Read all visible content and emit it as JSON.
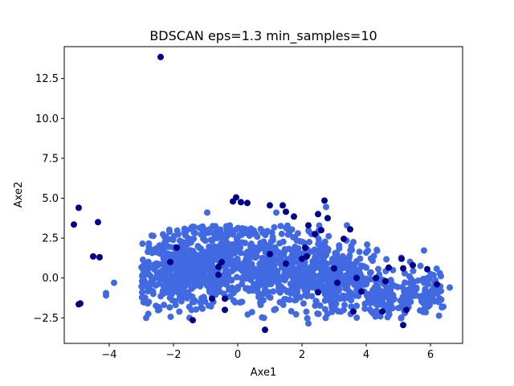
{
  "chart_data": {
    "type": "scatter",
    "title": "BDSCAN eps=1.3 min_samples=10",
    "xlabel": "Axe1",
    "ylabel": "Axe2",
    "xlim": [
      -5.4,
      7.0
    ],
    "ylim": [
      -4.1,
      14.5
    ],
    "xticks": [
      -4,
      -2,
      0,
      2,
      4,
      6
    ],
    "xtick_labels": [
      "−4",
      "−2",
      "0",
      "2",
      "4",
      "6"
    ],
    "yticks": [
      -2.5,
      0.0,
      2.5,
      5.0,
      7.5,
      10.0,
      12.5
    ],
    "ytick_labels": [
      "−2.5",
      "0.0",
      "2.5",
      "5.0",
      "7.5",
      "10.0",
      "12.5"
    ],
    "grid": false,
    "colors": {
      "cluster": "#4169e1",
      "noise": "#00008b"
    },
    "series": [
      {
        "role": "noise",
        "color": "#00008b",
        "points": [
          [
            -2.4,
            13.85
          ],
          [
            -4.95,
            4.4
          ],
          [
            -5.1,
            3.35
          ],
          [
            -4.35,
            3.5
          ],
          [
            -4.5,
            1.35
          ],
          [
            -4.3,
            1.3
          ],
          [
            -4.95,
            -1.65
          ],
          [
            -4.9,
            -1.6
          ],
          [
            -0.15,
            4.8
          ],
          [
            -0.05,
            5.05
          ],
          [
            0.1,
            4.75
          ],
          [
            0.3,
            4.7
          ],
          [
            1.0,
            4.55
          ],
          [
            1.4,
            4.55
          ],
          [
            1.5,
            4.15
          ],
          [
            1.75,
            3.85
          ],
          [
            2.5,
            4.0
          ],
          [
            2.7,
            4.85
          ],
          [
            2.8,
            3.75
          ],
          [
            2.2,
            3.3
          ],
          [
            2.4,
            2.75
          ],
          [
            2.6,
            3.0
          ],
          [
            3.5,
            3.05
          ],
          [
            3.3,
            2.45
          ],
          [
            2.1,
            1.9
          ],
          [
            2.15,
            1.35
          ],
          [
            2.0,
            1.2
          ],
          [
            1.0,
            1.5
          ],
          [
            -0.5,
            1.0
          ],
          [
            -0.6,
            0.7
          ],
          [
            -1.9,
            1.9
          ],
          [
            -2.1,
            1.0
          ],
          [
            -0.6,
            0.2
          ],
          [
            -0.8,
            -1.3
          ],
          [
            -0.4,
            -1.3
          ],
          [
            -1.4,
            -2.65
          ],
          [
            0.85,
            -3.25
          ],
          [
            -0.4,
            -2.0
          ],
          [
            1.5,
            0.9
          ],
          [
            3.0,
            0.6
          ],
          [
            3.7,
            0.0
          ],
          [
            3.85,
            -0.85
          ],
          [
            4.3,
            0.0
          ],
          [
            4.6,
            -0.2
          ],
          [
            4.7,
            0.65
          ],
          [
            5.1,
            1.2
          ],
          [
            5.15,
            0.6
          ],
          [
            5.45,
            0.8
          ],
          [
            5.9,
            0.55
          ],
          [
            6.2,
            -0.4
          ],
          [
            5.25,
            -2.0
          ],
          [
            5.15,
            -2.95
          ],
          [
            4.5,
            -2.1
          ],
          [
            3.6,
            -2.1
          ],
          [
            3.1,
            -0.3
          ],
          [
            2.5,
            -0.9
          ]
        ]
      }
    ],
    "cluster_shape": {
      "role": "cluster",
      "color": "#4169e1",
      "blobs": [
        {
          "center": [
            -1.6,
            0.4
          ],
          "spread": [
            0.85,
            1.05
          ],
          "count": 520
        },
        {
          "center": [
            0.6,
            0.8
          ],
          "spread": [
            1.15,
            1.05
          ],
          "count": 420
        },
        {
          "center": [
            2.6,
            0.0
          ],
          "spread": [
            0.95,
            1.05
          ],
          "count": 360
        },
        {
          "center": [
            4.6,
            -1.0
          ],
          "spread": [
            0.9,
            0.8
          ],
          "count": 200
        },
        {
          "center": [
            0.0,
            2.8
          ],
          "spread": [
            1.1,
            0.55
          ],
          "count": 80
        },
        {
          "center": [
            6.0,
            -1.3
          ],
          "spread": [
            0.35,
            0.45
          ],
          "count": 25
        }
      ],
      "outliers": [
        [
          -4.1,
          -0.95
        ],
        [
          -4.1,
          -1.1
        ],
        [
          -3.85,
          -0.3
        ],
        [
          -2.85,
          -2.5
        ],
        [
          6.6,
          -0.6
        ],
        [
          6.25,
          -1.5
        ],
        [
          6.4,
          -1.8
        ],
        [
          2.2,
          -2.85
        ],
        [
          -1.5,
          -2.5
        ],
        [
          1.2,
          4.1
        ],
        [
          3.4,
          3.3
        ],
        [
          -0.95,
          4.1
        ],
        [
          2.75,
          4.45
        ],
        [
          3.6,
          2.25
        ],
        [
          5.8,
          -0.3
        ],
        [
          6.05,
          -1.0
        ]
      ]
    }
  }
}
